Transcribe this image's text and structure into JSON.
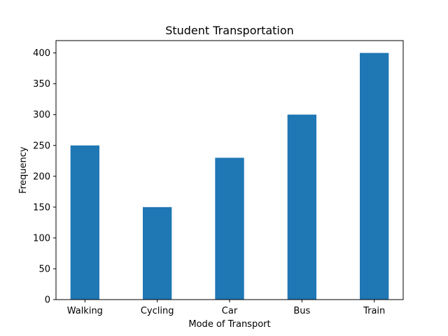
{
  "chart_data": {
    "type": "bar",
    "title": "Student Transportation",
    "xlabel": "Mode of Transport",
    "ylabel": "Frequency",
    "categories": [
      "Walking",
      "Cycling",
      "Car",
      "Bus",
      "Train"
    ],
    "values": [
      250,
      150,
      230,
      300,
      400
    ],
    "ylim": [
      0,
      420
    ],
    "yticks": [
      0,
      50,
      100,
      150,
      200,
      250,
      300,
      350,
      400
    ],
    "grid": false,
    "colors": {
      "bar": "#1f77b4",
      "axis": "#000000",
      "background": "#ffffff"
    }
  }
}
